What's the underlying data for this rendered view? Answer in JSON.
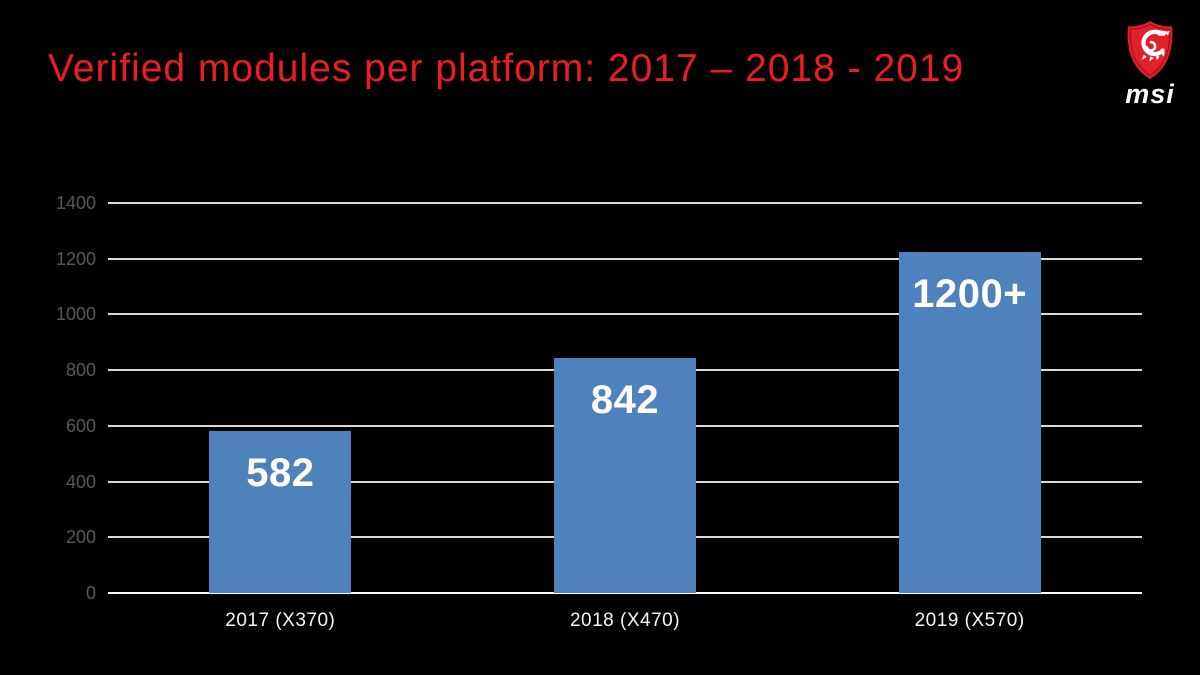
{
  "slide": {
    "title": "Verified modules per platform: 2017 – 2018 - 2019",
    "title_color": "#ec1c24",
    "background_color": "#000000"
  },
  "logo": {
    "brand_text": "msi",
    "shield_color": "#e0202b",
    "shield_border_color": "#a8101c",
    "dragon_color": "#ffffff",
    "text_color": "#ffffff"
  },
  "chart_data": {
    "type": "bar",
    "title": "",
    "categories": [
      "2017 (X370)",
      "2018 (X470)",
      "2019 (X570)"
    ],
    "values": [
      582,
      842,
      1225
    ],
    "bar_labels": [
      "582",
      "842",
      "1200+"
    ],
    "ylim": [
      0,
      1400
    ],
    "ytick_interval": 200,
    "yticks": [
      0,
      200,
      400,
      600,
      800,
      1000,
      1200,
      1400
    ],
    "grid": true,
    "legend": false,
    "bar_color": "#4f81bd",
    "bar_label_color": "#ffffff",
    "gridline_color": "#d9d9d9",
    "baseline_color": "#ffffff",
    "ytick_color": "#595959",
    "xlabel_color": "#f5f5f5"
  }
}
